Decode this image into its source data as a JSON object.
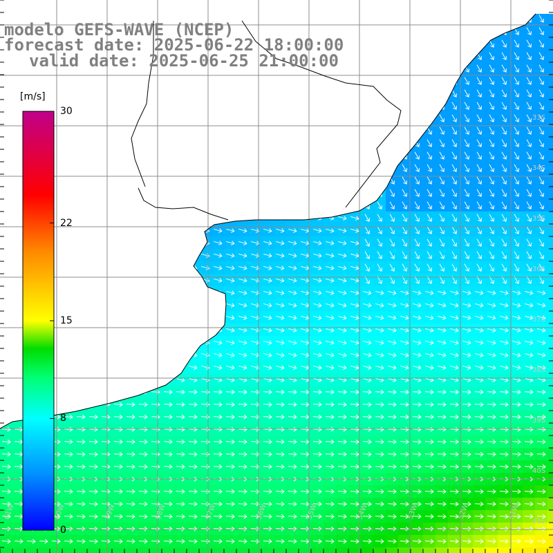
{
  "title": {
    "line1": "modelo GEFS-WAVE (NCEP)",
    "line2": "forecast date: 2025-06-22 18:00:00",
    "line3": "valid date: 2025-06-25 21:00:00"
  },
  "colorbar": {
    "unit": "[m/s]",
    "ticks": [
      "30",
      "22",
      "15",
      "8",
      "0"
    ],
    "tick_values": [
      30,
      22,
      15,
      8,
      0
    ],
    "stops": [
      {
        "v": 0,
        "color": "#0000ff"
      },
      {
        "v": 4,
        "color": "#0090ff"
      },
      {
        "v": 8,
        "color": "#00ffff"
      },
      {
        "v": 11,
        "color": "#00ff70"
      },
      {
        "v": 13,
        "color": "#00dd00"
      },
      {
        "v": 15,
        "color": "#ffff00"
      },
      {
        "v": 20,
        "color": "#ff8800"
      },
      {
        "v": 24,
        "color": "#ff0000"
      },
      {
        "v": 30,
        "color": "#c0008a"
      }
    ]
  },
  "latitude_labels": [
    "33S",
    "34S",
    "35S",
    "36S",
    "37S",
    "38S",
    "39S",
    "40S",
    "41S"
  ],
  "longitude_labels": [
    "61W",
    "60W",
    "59W",
    "58W",
    "57W",
    "56W",
    "55W",
    "54W",
    "53W",
    "52W",
    "51W"
  ],
  "map_colors": {
    "land": "#ffffff",
    "grid": "#8c8c8c",
    "coast": "#000000",
    "arrows": "#ffffff"
  }
}
